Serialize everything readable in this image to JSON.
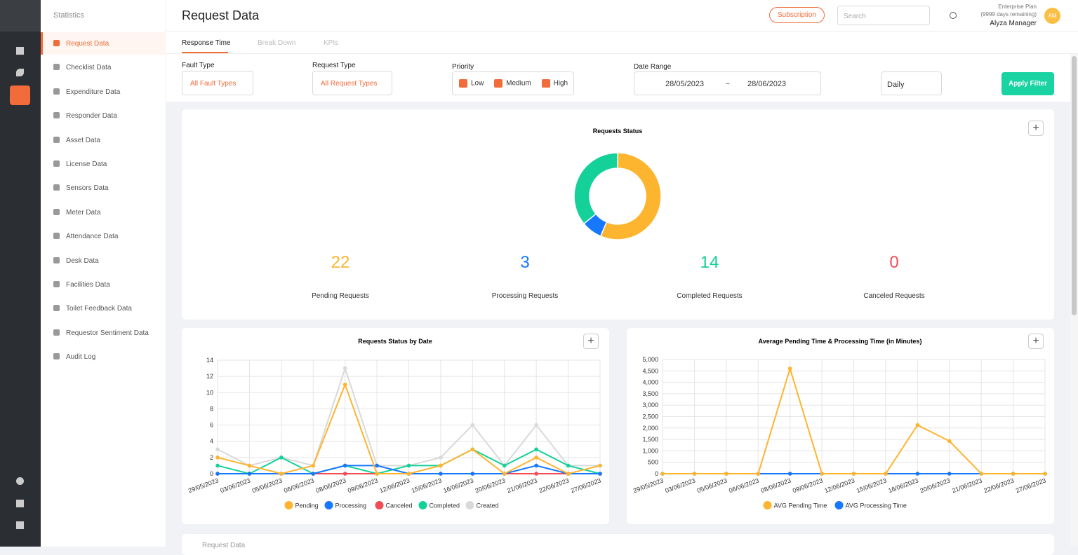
{
  "sidebar": {
    "title": "Statistics",
    "items": [
      "Request Data",
      "Checklist Data",
      "Expenditure Data",
      "Responder Data",
      "Asset Data",
      "License Data",
      "Sensors Data",
      "Meter Data",
      "Attendance Data",
      "Desk Data",
      "Facilities Data",
      "Toilet Feedback Data",
      "Requestor Sentiment Data",
      "Audit Log"
    ]
  },
  "header": {
    "title": "Request Data",
    "subscription": "Subscription",
    "search": "Search",
    "plan": "Enterprise Plan",
    "days": "(9999 days remaining)",
    "user": "Alyza Manager",
    "avatar": "AM"
  },
  "tabs": [
    "Response Time",
    "Break Down",
    "KPIs"
  ],
  "filters": {
    "fault_type": {
      "label": "Fault Type",
      "value": "All Fault Types"
    },
    "request_type": {
      "label": "Request Type",
      "value": "All Request Types"
    },
    "priority": {
      "label": "Priority",
      "options": [
        "Low",
        "Medium",
        "High"
      ]
    },
    "date_range": {
      "label": "Date Range",
      "start": "28/05/2023",
      "separator": "~",
      "end": "28/06/2023"
    },
    "interval": "Daily",
    "apply": "Apply Filter"
  },
  "bottom_card": {
    "title": "Request Data"
  },
  "chart_data": [
    {
      "type": "donut",
      "title": "Requests Status",
      "categories": [
        "Pending Requests",
        "Processing Requests",
        "Completed Requests",
        "Canceled Requests"
      ],
      "values": [
        22,
        3,
        14,
        0
      ],
      "colors": [
        "#fdb52f",
        "#1677ff",
        "#14d199",
        "#f04d57"
      ]
    },
    {
      "type": "line",
      "title": "Requests Status by Date",
      "categories": [
        "29/05/2023",
        "03/06/2023",
        "05/06/2023",
        "06/06/2023",
        "08/06/2023",
        "09/06/2023",
        "12/06/2023",
        "15/06/2023",
        "16/06/2023",
        "20/06/2023",
        "21/06/2023",
        "22/06/2023",
        "27/06/2023"
      ],
      "series": [
        {
          "name": "Pending",
          "color": "#fdb52f",
          "values": [
            2,
            1,
            0,
            1,
            11,
            0,
            0,
            1,
            3,
            0,
            2,
            0,
            1
          ]
        },
        {
          "name": "Processing",
          "color": "#1677ff",
          "values": [
            0,
            0,
            0,
            0,
            1,
            1,
            0,
            0,
            0,
            0,
            1,
            0,
            0
          ]
        },
        {
          "name": "Canceled",
          "color": "#f04d57",
          "values": [
            0,
            0,
            0,
            0,
            0,
            0,
            0,
            0,
            0,
            0,
            0,
            0,
            0
          ]
        },
        {
          "name": "Completed",
          "color": "#14d199",
          "values": [
            1,
            0,
            2,
            0,
            1,
            0,
            1,
            1,
            3,
            1,
            3,
            1,
            0
          ]
        },
        {
          "name": "Created",
          "color": "#d9d9d9",
          "values": [
            3,
            1,
            2,
            1,
            13,
            1,
            1,
            2,
            6,
            1,
            6,
            1,
            1
          ]
        }
      ],
      "ylim": [
        0,
        14
      ],
      "yticks": [
        0,
        2,
        4,
        6,
        8,
        10,
        12,
        14
      ],
      "grid": true
    },
    {
      "type": "line",
      "title": "Average Pending Time & Processing Time (in Minutes)",
      "categories": [
        "29/05/2023",
        "03/06/2023",
        "05/06/2023",
        "06/06/2023",
        "08/06/2023",
        "09/06/2023",
        "12/06/2023",
        "15/06/2023",
        "16/06/2023",
        "20/06/2023",
        "21/06/2023",
        "22/06/2023",
        "27/06/2023"
      ],
      "series": [
        {
          "name": "AVG Pending Time",
          "color": "#fdb52f",
          "values": [
            0,
            0,
            0,
            0,
            4600,
            0,
            0,
            0,
            2130,
            1430,
            0,
            0,
            0
          ]
        },
        {
          "name": "AVG Processing Time",
          "color": "#1677ff",
          "values": [
            0,
            0,
            0,
            0,
            0,
            0,
            0,
            0,
            0,
            0,
            0,
            0,
            0
          ]
        }
      ],
      "ylim": [
        0,
        5000
      ],
      "yticks": [
        0,
        500,
        {
          "value": 1000,
          "label": "1,000"
        },
        {
          "value": 1500,
          "label": "1,500"
        },
        {
          "value": 2000,
          "label": "2,000"
        },
        {
          "value": 2500,
          "label": "2,500"
        },
        {
          "value": 3000,
          "label": "3,000"
        },
        {
          "value": 3500,
          "label": "3,500"
        },
        {
          "value": 4000,
          "label": "4,000"
        },
        {
          "value": 4500,
          "label": "4,500"
        },
        {
          "value": 5000,
          "label": "5,000"
        }
      ],
      "grid": true
    }
  ]
}
